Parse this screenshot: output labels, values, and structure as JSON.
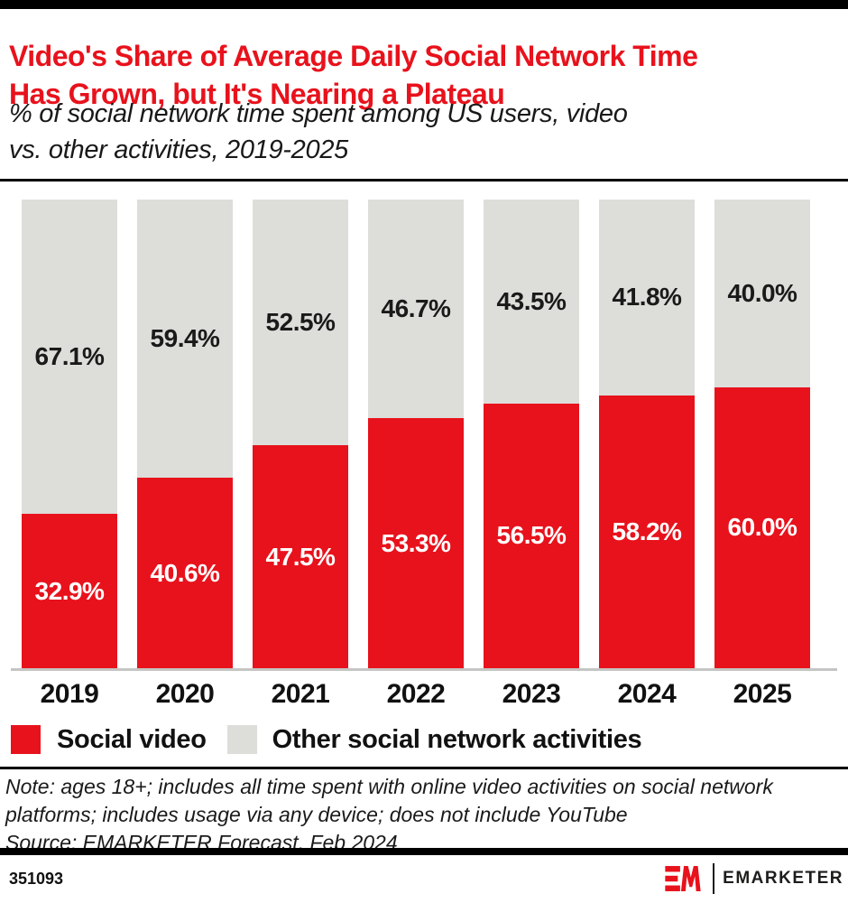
{
  "header": {
    "title_lines": [
      "Video's Share of Average Daily Social Network Time",
      "Has Grown, but It's Nearing a Plateau"
    ],
    "subtitle_lines": [
      "% of social network time spent among US users, video",
      "vs. other activities, 2019-2025"
    ]
  },
  "chart_data": {
    "type": "bar",
    "stacked": true,
    "unit": "%",
    "title": "Video's Share of Average Daily Social Network Time Has Grown, but It's Nearing a Plateau",
    "subtitle": "% of social network time spent among US users, video vs. other activities, 2019-2025",
    "categories": [
      "2019",
      "2020",
      "2021",
      "2022",
      "2023",
      "2024",
      "2025"
    ],
    "series": [
      {
        "name": "Social video",
        "color": "#E8121C",
        "values": [
          32.9,
          40.6,
          47.5,
          53.3,
          56.5,
          58.2,
          60.0
        ],
        "labels": [
          "32.9%",
          "40.6%",
          "47.5%",
          "53.3%",
          "56.5%",
          "58.2%",
          "60.0%"
        ]
      },
      {
        "name": "Other social network activities",
        "color": "#DDDDDA",
        "values": [
          67.1,
          59.4,
          52.5,
          46.7,
          43.5,
          41.8,
          40.0
        ],
        "labels": [
          "67.1%",
          "59.4%",
          "52.5%",
          "46.7%",
          "43.5%",
          "41.8%",
          "40.0%"
        ]
      }
    ],
    "ylim": [
      0,
      100
    ],
    "grid": false,
    "legend_position": "bottom"
  },
  "legend": [
    {
      "label": "Social video",
      "color": "#E8121C"
    },
    {
      "label": "Other social network activities",
      "color": "#DDDDDA"
    }
  ],
  "footnote": {
    "note": "Note: ages 18+; includes all time spent with online video activities on social network platforms; includes usage via any device; does not include YouTube",
    "source": "Source: EMARKETER Forecast, Feb 2024"
  },
  "footer": {
    "chart_id": "351093",
    "brand": "EMARKETER"
  },
  "colors": {
    "accent_red": "#E8121C",
    "bar_gray": "#DDDDDA",
    "rule_black": "#000000",
    "axis_gray": "#C5C5C3"
  }
}
